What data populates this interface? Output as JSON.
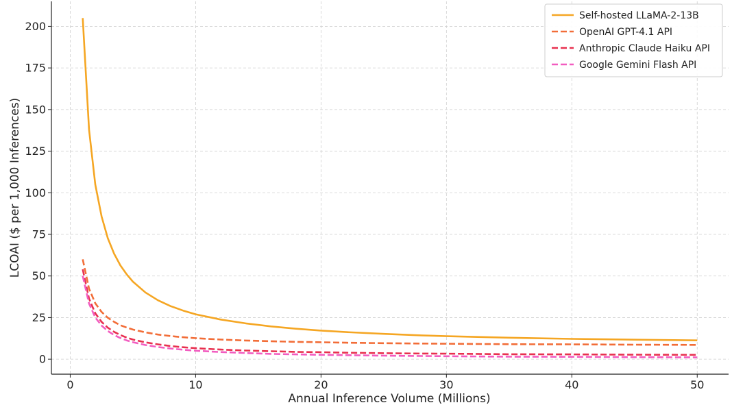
{
  "chart_data": {
    "type": "line",
    "title": "",
    "xlabel": "Annual Inference Volume (Millions)",
    "ylabel": "LCOAI ($ per 1,000 Inferences)",
    "xlim": [
      -1.5,
      52.5
    ],
    "ylim": [
      -9,
      215
    ],
    "xticks": [
      0,
      10,
      20,
      30,
      40,
      50
    ],
    "yticks": [
      0,
      25,
      50,
      75,
      100,
      125,
      150,
      175,
      200
    ],
    "grid": true,
    "legend_position": "top-right",
    "x": [
      1,
      1.5,
      2,
      2.5,
      3,
      3.5,
      4,
      4.5,
      5,
      6,
      7,
      8,
      9,
      10,
      12,
      14,
      16,
      18,
      20,
      22,
      25,
      28,
      30,
      35,
      40,
      45,
      50
    ],
    "series": [
      {
        "name": "Self-hosted LLaMA-2-13B",
        "color": "#f5a623",
        "dash": "solid",
        "values": [
          205,
          138,
          105,
          85.8,
          72.7,
          63.4,
          56.4,
          51.0,
          46.6,
          40.1,
          35.4,
          31.9,
          29.2,
          27.0,
          23.8,
          21.5,
          19.7,
          18.3,
          17.2,
          16.3,
          15.2,
          14.3,
          13.8,
          12.9,
          12.2,
          11.7,
          11.3
        ]
      },
      {
        "name": "OpenAI GPT-4.1 API",
        "color": "#f26d38",
        "dash": "dashed",
        "values": [
          60,
          42.4,
          33.6,
          28.4,
          24.9,
          22.4,
          20.4,
          19.0,
          17.8,
          16.1,
          14.8,
          13.9,
          13.2,
          12.6,
          11.8,
          11.2,
          10.8,
          10.4,
          10.2,
          9.9,
          9.6,
          9.4,
          9.3,
          9.0,
          8.9,
          8.7,
          8.6
        ]
      },
      {
        "name": "Anthropic Claude Haiku API",
        "color": "#e8304f",
        "dash": "dashed",
        "values": [
          54,
          36.4,
          27.6,
          22.4,
          18.9,
          16.4,
          14.5,
          13.0,
          11.8,
          10.1,
          8.9,
          7.9,
          7.2,
          6.6,
          5.8,
          5.2,
          4.8,
          4.4,
          4.2,
          3.9,
          3.6,
          3.4,
          3.3,
          3.0,
          2.9,
          2.7,
          2.6
        ]
      },
      {
        "name": "Google Gemini Flash API",
        "color": "#f25cc0",
        "dash": "dashed",
        "values": [
          50,
          33.4,
          25.1,
          20.2,
          16.9,
          14.5,
          12.7,
          11.3,
          10.2,
          8.5,
          7.3,
          6.4,
          5.7,
          5.1,
          4.3,
          3.7,
          3.2,
          2.9,
          2.6,
          2.4,
          2.1,
          1.9,
          1.8,
          1.5,
          1.4,
          1.2,
          1.1
        ]
      }
    ]
  }
}
